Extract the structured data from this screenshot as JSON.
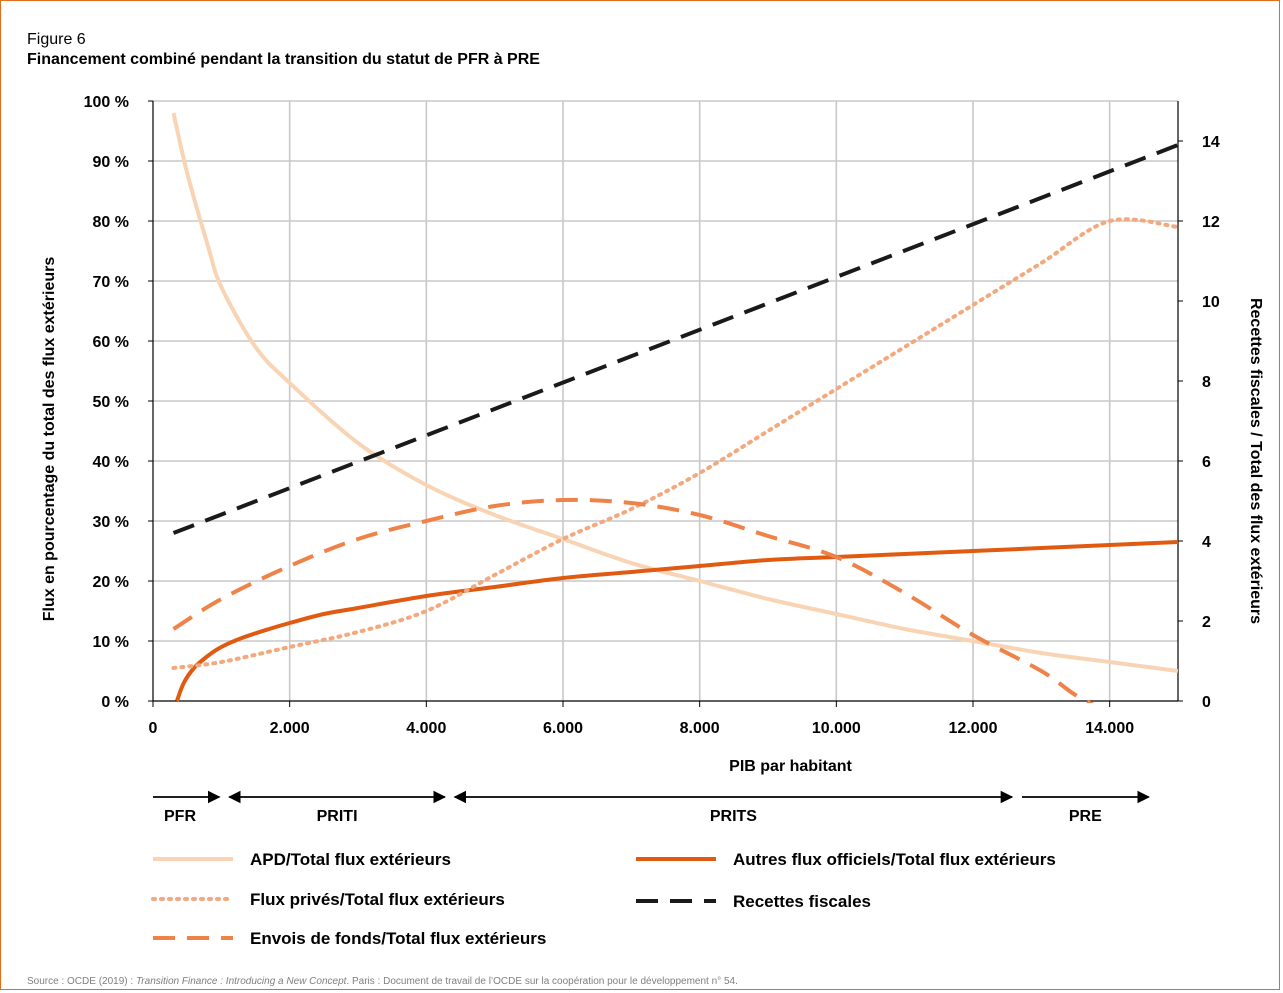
{
  "figure": {
    "label": "Figure 6",
    "title": "Financement combiné pendant la transition du statut de PFR à PRE",
    "source_prefix": "Source : OCDE (2019) : ",
    "source_title": "Transition Finance : Introducing a New Concept",
    "source_suffix": ". Paris : Document de travail de l’OCDE sur la coopération pour le développement n° 54."
  },
  "colors": {
    "apd": "#f9d4b4",
    "autres": "#e05a12",
    "prives": "#f3a87d",
    "envois": "#ef8248",
    "recettes": "#1a1a1a",
    "grid": "#c8c8c8",
    "frame": "#e36c1a"
  },
  "chart_data": {
    "type": "line",
    "title": "Financement combiné pendant la transition du statut de PFR à PRE",
    "xlabel": "PIB par habitant",
    "ylabel": "Flux en pourcentage du total des flux extérieurs",
    "y2label": "Recettes fiscales / Total des flux extérieurs",
    "xlim": [
      0,
      15000
    ],
    "ylim": [
      0,
      100
    ],
    "y2lim": [
      0,
      15
    ],
    "x_ticks": [
      0,
      2000,
      4000,
      6000,
      8000,
      10000,
      12000,
      14000
    ],
    "x_tick_labels": [
      "0",
      "2.000",
      "4.000",
      "6.000",
      "8.000",
      "10.000",
      "12.000",
      "14.000"
    ],
    "y_ticks": [
      0,
      10,
      20,
      30,
      40,
      50,
      60,
      70,
      80,
      90,
      100
    ],
    "y_tick_labels": [
      "0 %",
      "10 %",
      "20 %",
      "30 %",
      "40 %",
      "50 %",
      "60 %",
      "70 %",
      "80 %",
      "90 %",
      "100 %"
    ],
    "y2_ticks": [
      0,
      2,
      4,
      6,
      8,
      10,
      12,
      14
    ],
    "y2_tick_labels": [
      "0",
      "2",
      "4",
      "6",
      "8",
      "10",
      "12",
      "14"
    ],
    "grid": true,
    "legend_position": "bottom",
    "series": [
      {
        "name": "APD/Total flux extérieurs",
        "axis": "left",
        "style": "solid-light",
        "x": [
          300,
          500,
          800,
          1000,
          1500,
          2000,
          3000,
          4000,
          5000,
          6000,
          7000,
          8000,
          9000,
          10000,
          11000,
          12000,
          13000,
          14000,
          15000
        ],
        "y": [
          98,
          88,
          76,
          69,
          59,
          53,
          43,
          36,
          31,
          27,
          23,
          20,
          17,
          14.5,
          12,
          10,
          8,
          6.5,
          5
        ]
      },
      {
        "name": "Autres flux officiels/Total flux extérieurs",
        "axis": "left",
        "style": "solid-dark",
        "x": [
          350,
          450,
          600,
          800,
          1000,
          1300,
          1700,
          2000,
          2500,
          3000,
          4000,
          5000,
          6000,
          7000,
          8000,
          9000,
          10000,
          11000,
          12000,
          13000,
          14000,
          15000
        ],
        "y": [
          0,
          3,
          5.5,
          7.5,
          9,
          10.5,
          12,
          13,
          14.5,
          15.5,
          17.5,
          19,
          20.5,
          21.5,
          22.5,
          23.5,
          24,
          24.5,
          25,
          25.5,
          26,
          26.5
        ]
      },
      {
        "name": "Flux privés/Total flux extérieurs",
        "axis": "left",
        "style": "dotted",
        "x": [
          300,
          1000,
          2000,
          3000,
          4000,
          5000,
          6000,
          7000,
          8000,
          9000,
          10000,
          11000,
          12000,
          13000,
          14000,
          15000
        ],
        "y": [
          5.5,
          6.5,
          9,
          11.5,
          15,
          21,
          27,
          32,
          38,
          45,
          52,
          59,
          66,
          73,
          80,
          79
        ]
      },
      {
        "name": "Envois de fonds/Total flux extérieurs",
        "axis": "left",
        "style": "dashed-orange",
        "x": [
          300,
          1000,
          2000,
          3000,
          4000,
          5000,
          6000,
          7000,
          8000,
          9000,
          10000,
          11000,
          12000,
          13000,
          13500,
          14000
        ],
        "y": [
          12,
          17,
          22.5,
          27,
          30,
          32.5,
          33.5,
          33,
          31,
          27.5,
          24,
          18,
          11,
          5,
          1,
          -2
        ]
      },
      {
        "name": "Recettes fiscales",
        "axis": "right",
        "style": "dashed-black",
        "x": [
          300,
          15000
        ],
        "y": [
          4.2,
          13.9
        ]
      }
    ],
    "annotations": {
      "income_phases": [
        {
          "label": "PFR",
          "x_start": 0,
          "x_end": 1000
        },
        {
          "label": "PRITI",
          "x_start": 1000,
          "x_end": 4300
        },
        {
          "label": "PRITS",
          "x_start": 4300,
          "x_end": 12600
        },
        {
          "label": "PRE",
          "x_start": 12600,
          "x_end": 14600
        }
      ]
    }
  }
}
